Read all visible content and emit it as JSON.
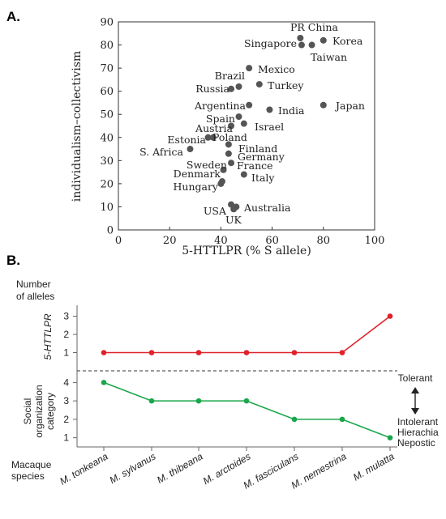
{
  "panel_a_letter": "A.",
  "panel_b_letter": "B.",
  "chart_data": [
    {
      "type": "scatter",
      "xlabel": "5-HTTLPR (% S allele)",
      "ylabel": "individualism–collectivism",
      "xlim": [
        0,
        100
      ],
      "ylim": [
        0,
        90
      ],
      "xticks": [
        0,
        20,
        40,
        60,
        80,
        100
      ],
      "yticks": [
        0,
        10,
        20,
        30,
        40,
        50,
        60,
        70,
        80,
        90
      ],
      "grid": false,
      "marker_color": "#555555",
      "points": [
        {
          "label": "PR China",
          "x": 71,
          "y": 83
        },
        {
          "label": "",
          "x": 71.5,
          "y": 80
        },
        {
          "label": "Taiwan",
          "x": 75.5,
          "y": 80
        },
        {
          "label": "Korea",
          "x": 80,
          "y": 82
        },
        {
          "label": "Singapore",
          "x": 0,
          "y": 0,
          "label_only": true
        },
        {
          "label": "Mexico",
          "x": 51,
          "y": 70
        },
        {
          "label": "Brazil",
          "x": 47,
          "y": 62
        },
        {
          "label": "",
          "x": 44,
          "y": 61
        },
        {
          "label": "Turkey",
          "x": 55,
          "y": 63
        },
        {
          "label": "Russia",
          "x": 0,
          "y": 0,
          "label_only": true
        },
        {
          "label": "Argentina",
          "x": 51,
          "y": 54
        },
        {
          "label": "India",
          "x": 59,
          "y": 52
        },
        {
          "label": "Japan",
          "x": 80,
          "y": 54
        },
        {
          "label": "Spain",
          "x": 47,
          "y": 49
        },
        {
          "label": "Israel",
          "x": 49,
          "y": 46
        },
        {
          "label": "Austria",
          "x": 44,
          "y": 45
        },
        {
          "label": "Poland",
          "x": 37,
          "y": 40
        },
        {
          "label": "Estonia",
          "x": 35,
          "y": 40
        },
        {
          "label": "Finland",
          "x": 43,
          "y": 37
        },
        {
          "label": "Germany",
          "x": 43,
          "y": 33
        },
        {
          "label": "S. Africa",
          "x": 28,
          "y": 35
        },
        {
          "label": "France",
          "x": 44,
          "y": 29
        },
        {
          "label": "Sweden",
          "x": 0,
          "y": 0,
          "label_only": true
        },
        {
          "label": "Denmark",
          "x": 41,
          "y": 26
        },
        {
          "label": "Italy",
          "x": 49,
          "y": 24
        },
        {
          "label": "Hungary",
          "x": 40,
          "y": 20
        },
        {
          "label": "",
          "x": 40.5,
          "y": 21
        },
        {
          "label": "USA",
          "x": 44,
          "y": 11
        },
        {
          "label": "Australia",
          "x": 46,
          "y": 10
        },
        {
          "label": "UK",
          "x": 45,
          "y": 9
        }
      ]
    },
    {
      "type": "line",
      "categories": [
        "M. tonkeana",
        "M. sylvanus",
        "M. thibeana",
        "M. arctoides",
        "M. fasciculans",
        "M. nemestrina",
        "M. mulatta"
      ],
      "xlabel": "Macaque species",
      "series": [
        {
          "name": "5-HTTLPR",
          "color": "#e0202a",
          "values": [
            1,
            1,
            1,
            1,
            1,
            1,
            3
          ],
          "ylim": [
            0,
            3.6
          ],
          "yticks": [
            1,
            2,
            3
          ],
          "ylabel": "5-HTTLPR",
          "header": "Number of alleles"
        },
        {
          "name": "Social organization category",
          "color": "#1aa64a",
          "values": [
            4,
            3,
            3,
            3,
            2,
            2,
            1
          ],
          "ylim": [
            0.5,
            4.5
          ],
          "yticks": [
            1,
            2,
            3,
            4
          ],
          "ylabel": "Social organization category"
        }
      ],
      "header_line1": "Number",
      "header_line2": "of alleles",
      "ylabel_lower_line1": "Social",
      "ylabel_lower_line2": "organization",
      "ylabel_lower_line3": "category",
      "xlabel_line1": "Macaque",
      "xlabel_line2": "species",
      "annotation_top": "Tolerant",
      "annotation_bottom": [
        "Intolerant",
        "Hierachia",
        "Nepostic"
      ]
    }
  ]
}
